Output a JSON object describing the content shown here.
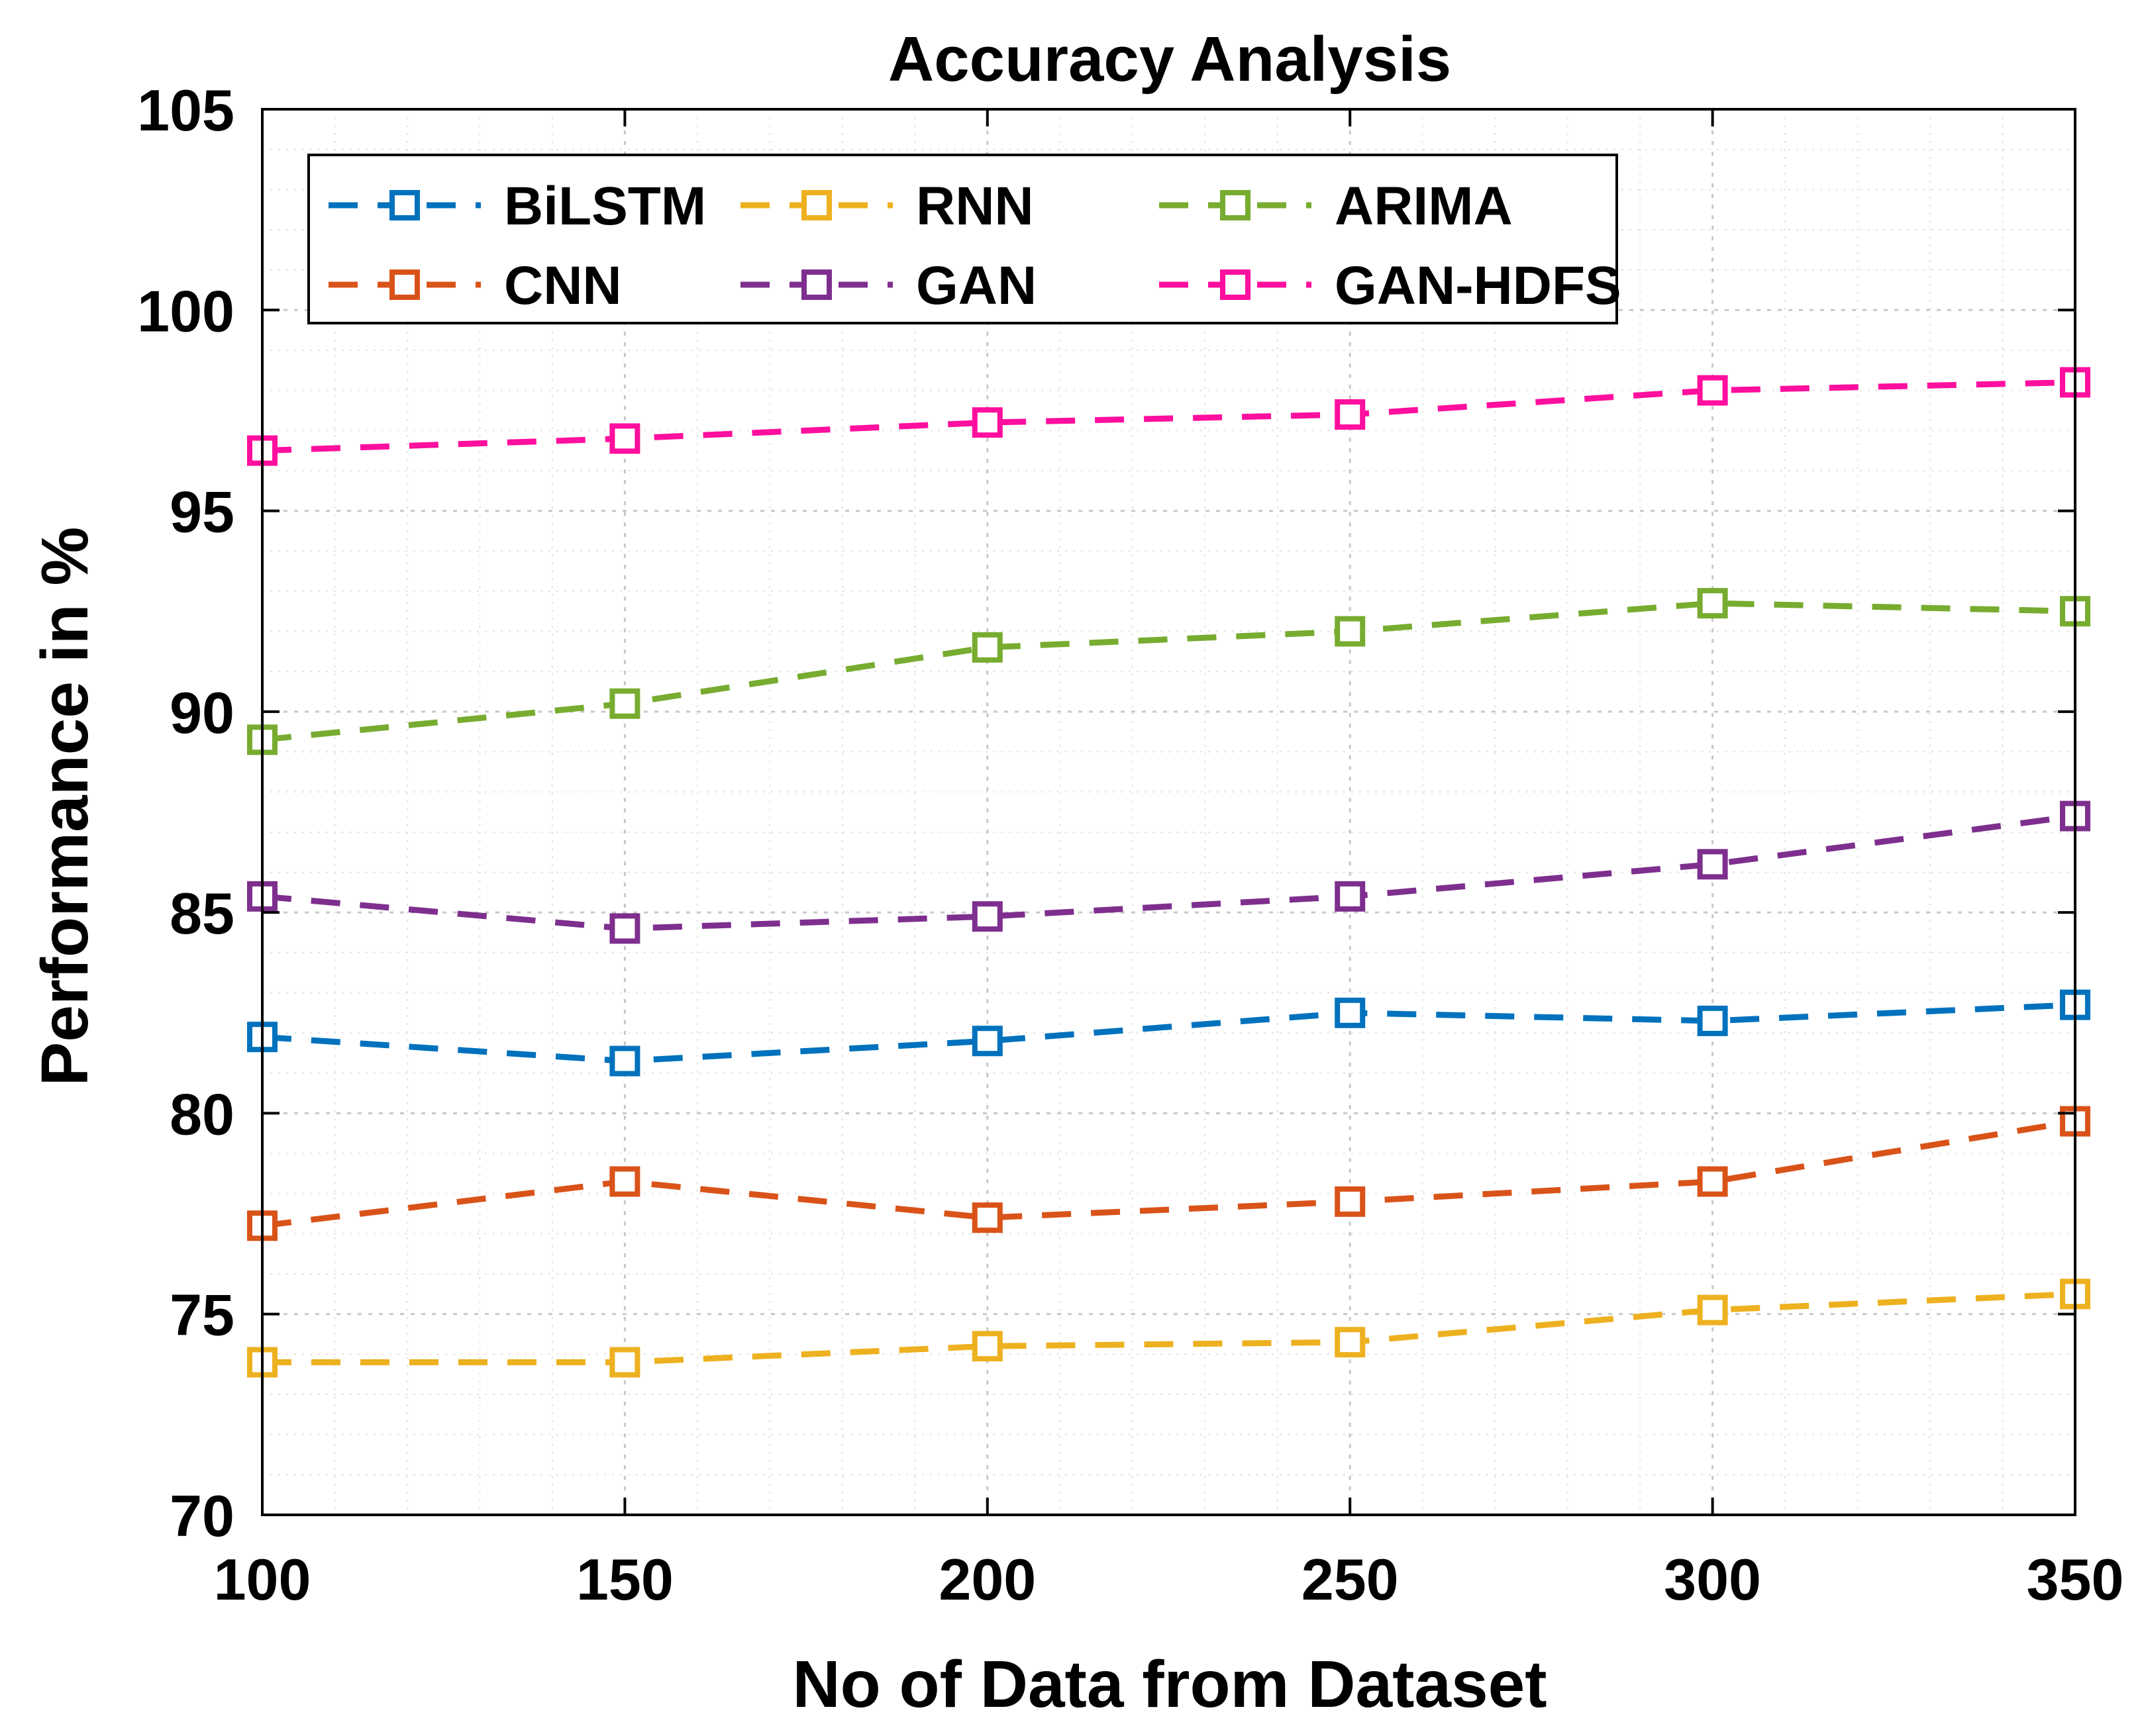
{
  "chart_data": {
    "type": "line",
    "title": "Accuracy Analysis",
    "xlabel": "No of Data from Dataset",
    "ylabel": "Performance in %",
    "x": [
      100,
      150,
      200,
      250,
      300,
      350
    ],
    "xlim": [
      100,
      350
    ],
    "ylim": [
      70,
      105
    ],
    "xticks": [
      "100",
      "150",
      "200",
      "250",
      "300",
      "350"
    ],
    "yticks": [
      "70",
      "75",
      "80",
      "85",
      "90",
      "95",
      "100",
      "105"
    ],
    "grid": true,
    "minor_grid": true,
    "legend_position": "top-left",
    "marker": "square",
    "line_style": "dashed",
    "series": [
      {
        "name": "BiLSTM",
        "color": "#0072BD",
        "values": [
          81.9,
          81.3,
          81.8,
          82.5,
          82.3,
          82.7
        ]
      },
      {
        "name": "CNN",
        "color": "#D95319",
        "values": [
          77.2,
          78.3,
          77.4,
          77.8,
          78.3,
          79.8
        ]
      },
      {
        "name": "RNN",
        "color": "#EDB120",
        "values": [
          73.8,
          73.8,
          74.2,
          74.3,
          75.1,
          75.5
        ]
      },
      {
        "name": "GAN",
        "color": "#7E2F8E",
        "values": [
          85.4,
          84.6,
          84.9,
          85.4,
          86.2,
          87.4
        ]
      },
      {
        "name": "ARIMA",
        "color": "#77AC30",
        "values": [
          89.3,
          90.2,
          91.6,
          92.0,
          92.7,
          92.5
        ]
      },
      {
        "name": "GAN-HDFS",
        "color": "#FF0F9E",
        "values": [
          96.5,
          96.8,
          97.2,
          97.4,
          98.0,
          98.2
        ]
      }
    ]
  }
}
